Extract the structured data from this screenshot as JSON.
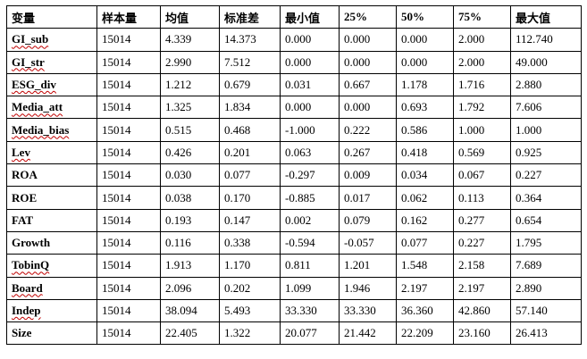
{
  "table": {
    "headers": [
      "变量",
      "样本量",
      "均值",
      "标准差",
      "最小值",
      "25%",
      "50%",
      "75%",
      "最大值"
    ],
    "rows": [
      [
        "GI_sub",
        "15014",
        "4.339",
        "14.373",
        "0.000",
        "0.000",
        "0.000",
        "2.000",
        "112.740"
      ],
      [
        "GI_str",
        "15014",
        "2.990",
        "7.512",
        "0.000",
        "0.000",
        "0.000",
        "2.000",
        "49.000"
      ],
      [
        "ESG_div",
        "15014",
        "1.212",
        "0.679",
        "0.031",
        "0.667",
        "1.178",
        "1.716",
        "2.880"
      ],
      [
        "Media_att",
        "15014",
        "1.325",
        "1.834",
        "0.000",
        "0.000",
        "0.693",
        "1.792",
        "7.606"
      ],
      [
        "Media_bias",
        "15014",
        "0.515",
        "0.468",
        "-1.000",
        "0.222",
        "0.586",
        "1.000",
        "1.000"
      ],
      [
        "Lev",
        "15014",
        "0.426",
        "0.201",
        "0.063",
        "0.267",
        "0.418",
        "0.569",
        "0.925"
      ],
      [
        "ROA",
        "15014",
        "0.030",
        "0.077",
        "-0.297",
        "0.009",
        "0.034",
        "0.067",
        "0.227"
      ],
      [
        "ROE",
        "15014",
        "0.038",
        "0.170",
        "-0.885",
        "0.017",
        "0.062",
        "0.113",
        "0.364"
      ],
      [
        "FAT",
        "15014",
        "0.193",
        "0.147",
        "0.002",
        "0.079",
        "0.162",
        "0.277",
        "0.654"
      ],
      [
        "Growth",
        "15014",
        "0.116",
        "0.338",
        "-0.594",
        "-0.057",
        "0.077",
        "0.227",
        "1.795"
      ],
      [
        "TobinQ",
        "15014",
        "1.913",
        "1.170",
        "0.811",
        "1.201",
        "1.548",
        "2.158",
        "7.689"
      ],
      [
        "Board",
        "15014",
        "2.096",
        "0.202",
        "1.099",
        "1.946",
        "2.197",
        "2.197",
        "2.890"
      ],
      [
        "Indep",
        "15014",
        "38.094",
        "5.493",
        "33.330",
        "33.330",
        "36.360",
        "42.860",
        "57.140"
      ],
      [
        "Size",
        "15014",
        "22.405",
        "1.322",
        "20.077",
        "21.442",
        "22.209",
        "23.160",
        "26.413"
      ]
    ]
  }
}
